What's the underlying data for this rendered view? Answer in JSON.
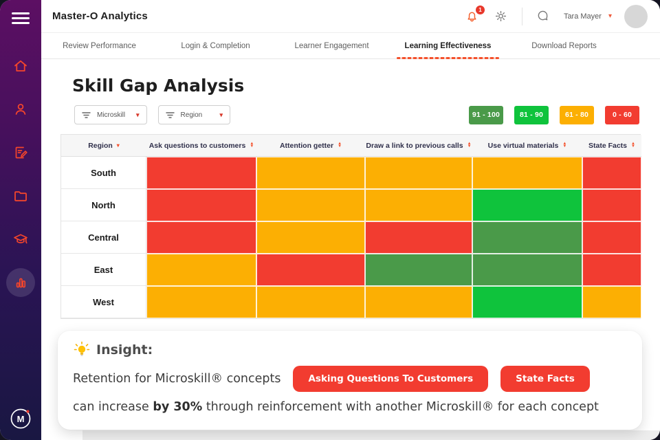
{
  "app": {
    "title": "Master-O Analytics",
    "notification_count": "1",
    "user_name": "Tara Mayer",
    "logo_letter": "M"
  },
  "sidebar": {
    "items": [
      "menu",
      "home",
      "users",
      "assessment",
      "folder",
      "learning",
      "analytics"
    ],
    "active_item": "analytics"
  },
  "header_icons": [
    "notifications-bell",
    "settings-gear",
    "chat-bubble"
  ],
  "tabs": [
    {
      "label": "Review Performance",
      "active": false
    },
    {
      "label": "Login & Completion",
      "active": false
    },
    {
      "label": "Learner Engagement",
      "active": false
    },
    {
      "label": "Learning Effectiveness",
      "active": true
    },
    {
      "label": "Download Reports",
      "active": false
    }
  ],
  "page": {
    "title": "Skill Gap Analysis"
  },
  "filters": [
    {
      "label": "Microskill"
    },
    {
      "label": "Region"
    }
  ],
  "legend": [
    {
      "label": "91 - 100",
      "color": "#4a9a49"
    },
    {
      "label": "81 - 90",
      "color": "#0fc33c"
    },
    {
      "label": "61 - 80",
      "color": "#fcaf03"
    },
    {
      "label": "0 - 60",
      "color": "#f23c30"
    }
  ],
  "chart_data": {
    "type": "heatmap",
    "row_header": "Region",
    "columns": [
      "Ask questions to customers",
      "Attention getter",
      "Draw a link to previous calls",
      "Use virtual materials",
      "State Facts"
    ],
    "rows": [
      "South",
      "North",
      "Central",
      "East",
      "West"
    ],
    "cells": [
      [
        "red",
        "amber",
        "amber",
        "amber",
        "red"
      ],
      [
        "red",
        "amber",
        "amber",
        "green",
        "red"
      ],
      [
        "red",
        "amber",
        "red",
        "dark-green",
        "red"
      ],
      [
        "amber",
        "red",
        "dark-green",
        "dark-green",
        "red"
      ],
      [
        "amber",
        "amber",
        "amber",
        "green",
        "amber"
      ]
    ],
    "band_colors": {
      "dark-green": "#4a9a49",
      "green": "#0fc33c",
      "amber": "#fcaf03",
      "red": "#f23c30"
    },
    "band_ranges": {
      "dark-green": "91 - 100",
      "green": "81 - 90",
      "amber": "61 - 80",
      "red": "0 - 60"
    }
  },
  "insight": {
    "heading": "Insight:",
    "line1_prefix": "Retention for Microskill® concepts",
    "buttons": [
      "Asking Questions To Customers",
      "State Facts"
    ],
    "line2_pre": "can increase ",
    "line2_bold": "by 30%",
    "line2_post": " through reinforcement with another Microskill® for each concept"
  }
}
